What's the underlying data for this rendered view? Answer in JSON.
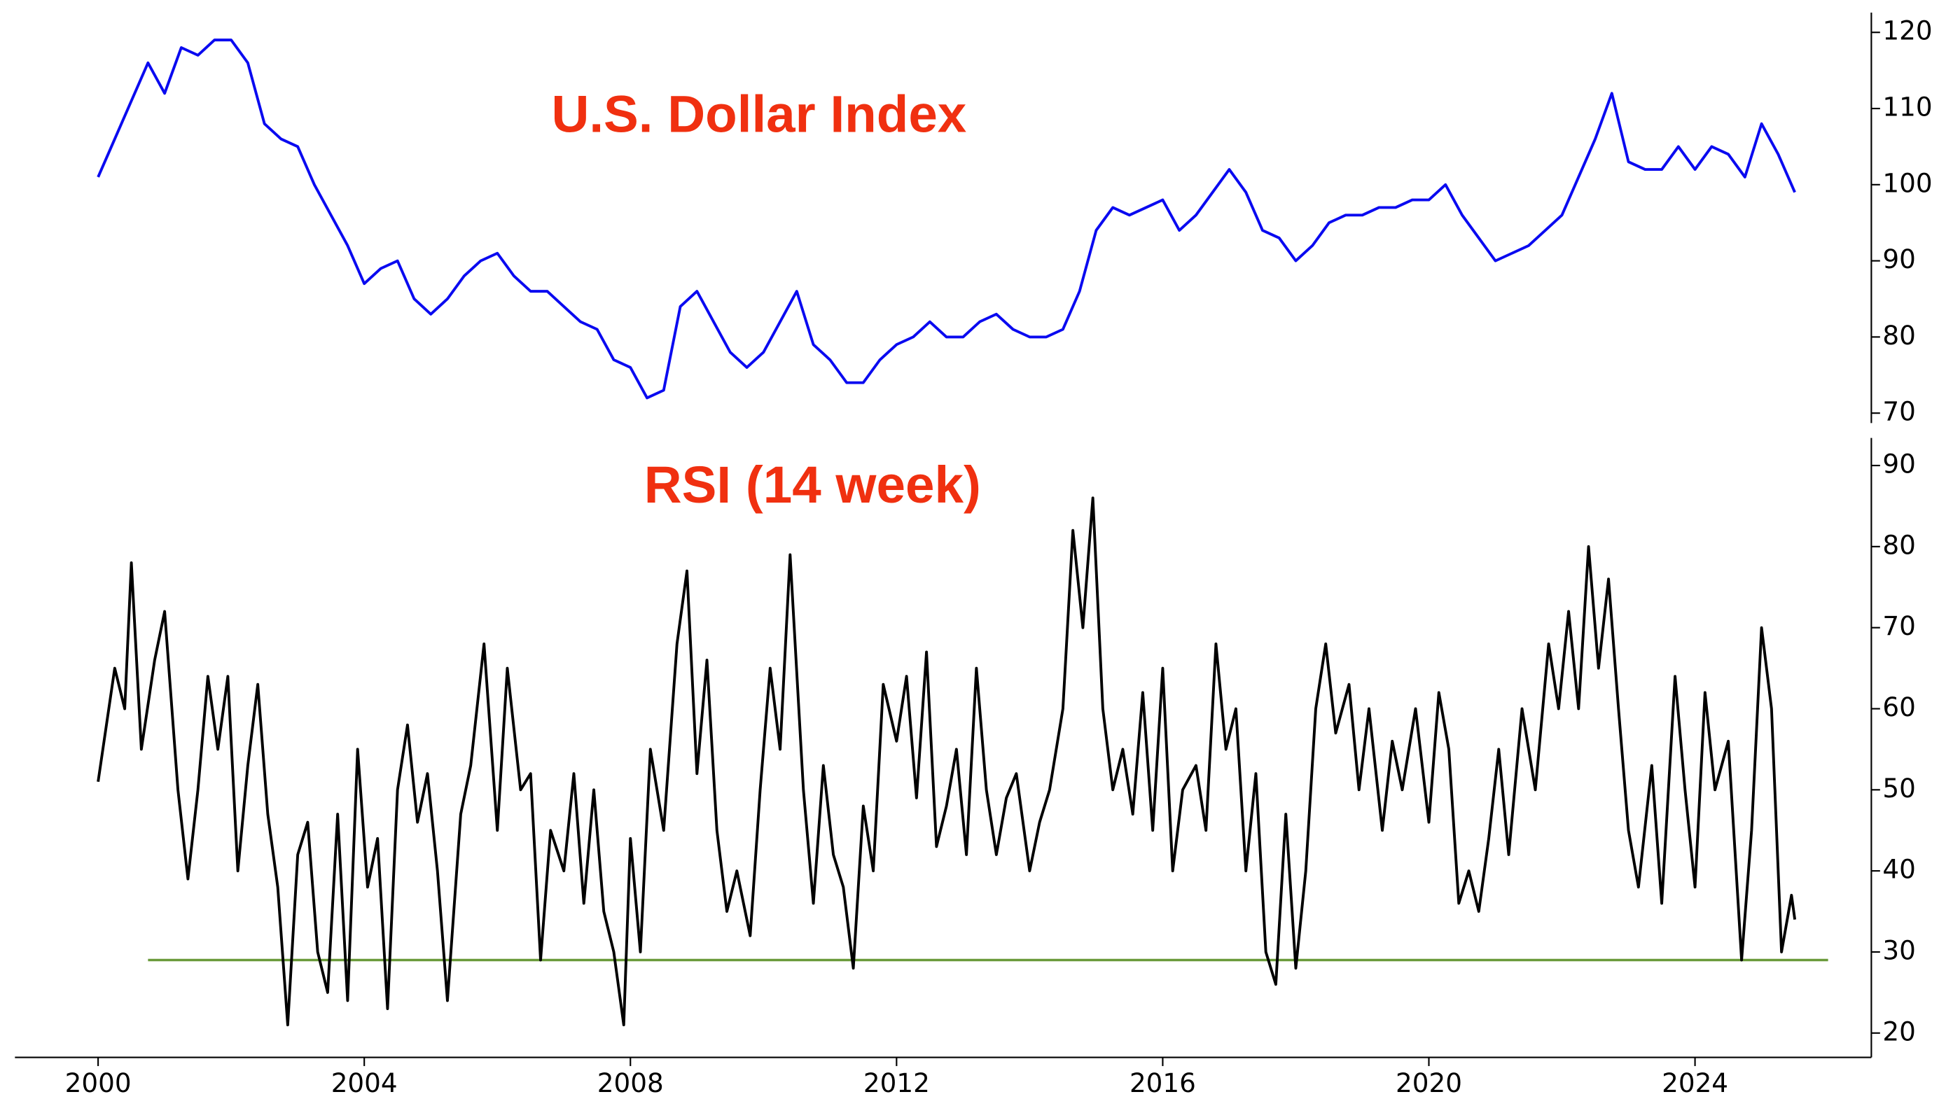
{
  "chart_data": [
    {
      "type": "line",
      "title": "U.S. Dollar Index",
      "x": [
        2000.0,
        2000.25,
        2000.5,
        2000.75,
        2001.0,
        2001.25,
        2001.5,
        2001.75,
        2002.0,
        2002.25,
        2002.5,
        2002.75,
        2003.0,
        2003.25,
        2003.5,
        2003.75,
        2004.0,
        2004.25,
        2004.5,
        2004.75,
        2005.0,
        2005.25,
        2005.5,
        2005.75,
        2006.0,
        2006.25,
        2006.5,
        2006.75,
        2007.0,
        2007.25,
        2007.5,
        2007.75,
        2008.0,
        2008.25,
        2008.5,
        2008.75,
        2009.0,
        2009.25,
        2009.5,
        2009.75,
        2010.0,
        2010.25,
        2010.5,
        2010.75,
        2011.0,
        2011.25,
        2011.5,
        2011.75,
        2012.0,
        2012.25,
        2012.5,
        2012.75,
        2013.0,
        2013.25,
        2013.5,
        2013.75,
        2014.0,
        2014.25,
        2014.5,
        2014.75,
        2015.0,
        2015.25,
        2015.5,
        2015.75,
        2016.0,
        2016.25,
        2016.5,
        2016.75,
        2017.0,
        2017.25,
        2017.5,
        2017.75,
        2018.0,
        2018.25,
        2018.5,
        2018.75,
        2019.0,
        2019.25,
        2019.5,
        2019.75,
        2020.0,
        2020.25,
        2020.5,
        2020.75,
        2021.0,
        2021.25,
        2021.5,
        2021.75,
        2022.0,
        2022.25,
        2022.5,
        2022.75,
        2023.0,
        2023.25,
        2023.5,
        2023.75,
        2024.0,
        2024.25,
        2024.5,
        2024.75,
        2025.0,
        2025.25,
        2025.5
      ],
      "series": [
        {
          "color": "#0a0af0",
          "values": [
            101,
            106,
            111,
            116,
            112,
            118,
            117,
            119,
            119,
            116,
            108,
            106,
            105,
            100,
            96,
            92,
            87,
            89,
            90,
            85,
            83,
            85,
            88,
            90,
            91,
            88,
            86,
            86,
            84,
            82,
            81,
            77,
            76,
            72,
            73,
            84,
            86,
            82,
            78,
            76,
            78,
            82,
            86,
            79,
            77,
            74,
            74,
            77,
            79,
            80,
            82,
            80,
            80,
            82,
            83,
            81,
            80,
            80,
            81,
            86,
            94,
            97,
            96,
            97,
            98,
            94,
            96,
            99,
            102,
            99,
            94,
            93,
            90,
            92,
            95,
            96,
            96,
            97,
            97,
            98,
            98,
            100,
            96,
            93,
            90,
            91,
            92,
            94,
            96,
            101,
            106,
            112,
            103,
            102,
            102,
            105,
            102,
            105,
            104,
            101,
            108,
            104,
            99
          ]
        }
      ],
      "xlim": [
        1998.75,
        2026.65
      ],
      "ylim": [
        68.7,
        122.6
      ],
      "yticks": [
        70,
        80,
        90,
        100,
        110,
        120
      ]
    },
    {
      "type": "line",
      "title": "RSI (14 week)",
      "x": [
        2000.0,
        2000.25,
        2000.4,
        2000.5,
        2000.65,
        2000.85,
        2001.0,
        2001.2,
        2001.35,
        2001.5,
        2001.65,
        2001.8,
        2001.95,
        2002.1,
        2002.25,
        2002.4,
        2002.55,
        2002.7,
        2002.85,
        2003.0,
        2003.15,
        2003.3,
        2003.45,
        2003.6,
        2003.75,
        2003.9,
        2004.05,
        2004.2,
        2004.35,
        2004.5,
        2004.65,
        2004.8,
        2004.95,
        2005.1,
        2005.25,
        2005.45,
        2005.6,
        2005.8,
        2006.0,
        2006.15,
        2006.35,
        2006.5,
        2006.65,
        2006.8,
        2007.0,
        2007.15,
        2007.3,
        2007.45,
        2007.6,
        2007.75,
        2007.9,
        2008.0,
        2008.15,
        2008.3,
        2008.5,
        2008.7,
        2008.85,
        2009.0,
        2009.15,
        2009.3,
        2009.45,
        2009.6,
        2009.8,
        2009.95,
        2010.1,
        2010.25,
        2010.4,
        2010.6,
        2010.75,
        2010.9,
        2011.05,
        2011.2,
        2011.35,
        2011.5,
        2011.65,
        2011.8,
        2012.0,
        2012.15,
        2012.3,
        2012.45,
        2012.6,
        2012.75,
        2012.9,
        2013.05,
        2013.2,
        2013.35,
        2013.5,
        2013.65,
        2013.8,
        2014.0,
        2014.15,
        2014.3,
        2014.5,
        2014.65,
        2014.8,
        2014.95,
        2015.1,
        2015.25,
        2015.4,
        2015.55,
        2015.7,
        2015.85,
        2016.0,
        2016.15,
        2016.3,
        2016.5,
        2016.65,
        2016.8,
        2016.95,
        2017.1,
        2017.25,
        2017.4,
        2017.55,
        2017.7,
        2017.85,
        2018.0,
        2018.15,
        2018.3,
        2018.45,
        2018.6,
        2018.8,
        2018.95,
        2019.1,
        2019.3,
        2019.45,
        2019.6,
        2019.8,
        2020.0,
        2020.15,
        2020.3,
        2020.45,
        2020.6,
        2020.75,
        2020.9,
        2021.05,
        2021.2,
        2021.4,
        2021.6,
        2021.8,
        2021.95,
        2022.1,
        2022.25,
        2022.4,
        2022.55,
        2022.7,
        2022.85,
        2023.0,
        2023.15,
        2023.35,
        2023.5,
        2023.7,
        2023.85,
        2024.0,
        2024.15,
        2024.3,
        2024.5,
        2024.7,
        2024.85,
        2025.0,
        2025.15,
        2025.3,
        2025.45,
        2025.5
      ],
      "series": [
        {
          "color": "#000000",
          "values": [
            51,
            65,
            60,
            78,
            55,
            66,
            72,
            50,
            39,
            50,
            64,
            55,
            64,
            40,
            53,
            63,
            47,
            38,
            21,
            42,
            46,
            30,
            25,
            47,
            24,
            55,
            38,
            44,
            23,
            50,
            58,
            46,
            52,
            40,
            24,
            47,
            53,
            68,
            45,
            65,
            50,
            52,
            29,
            45,
            40,
            52,
            36,
            50,
            35,
            30,
            21,
            44,
            30,
            55,
            45,
            68,
            77,
            52,
            66,
            45,
            35,
            40,
            32,
            50,
            65,
            55,
            79,
            50,
            36,
            53,
            42,
            38,
            28,
            48,
            40,
            63,
            56,
            64,
            49,
            67,
            43,
            48,
            55,
            42,
            65,
            50,
            42,
            49,
            52,
            40,
            46,
            50,
            60,
            82,
            70,
            86,
            60,
            50,
            55,
            47,
            62,
            45,
            65,
            40,
            50,
            53,
            45,
            68,
            55,
            60,
            40,
            52,
            30,
            26,
            47,
            28,
            40,
            60,
            68,
            57,
            63,
            50,
            60,
            45,
            56,
            50,
            60,
            46,
            62,
            55,
            36,
            40,
            35,
            44,
            55,
            42,
            60,
            50,
            68,
            60,
            72,
            60,
            80,
            65,
            76,
            60,
            45,
            38,
            53,
            36,
            64,
            50,
            38,
            62,
            50,
            56,
            29,
            45,
            70,
            60,
            30,
            37,
            34
          ]
        }
      ],
      "reference_line": {
        "value": 29,
        "x": [
          2000.75,
          2026.0
        ],
        "color": "#6a9a3a"
      },
      "xlim": [
        1998.75,
        2026.65
      ],
      "ylim": [
        17,
        93.4
      ],
      "yticks": [
        20,
        30,
        40,
        50,
        60,
        70,
        80,
        90
      ],
      "xticks": [
        2000,
        2004,
        2008,
        2012,
        2016,
        2020,
        2024
      ]
    }
  ]
}
